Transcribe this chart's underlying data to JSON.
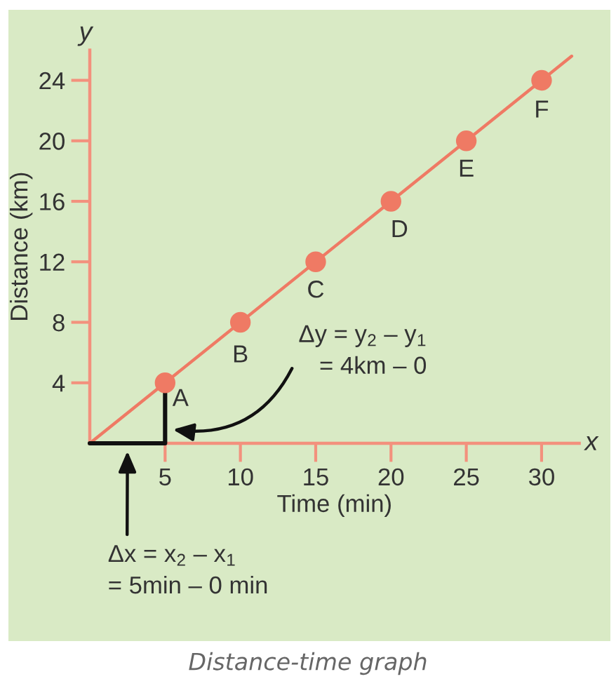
{
  "chart_data": {
    "type": "line",
    "title": "Distance-time graph",
    "xlabel": "Time (min)",
    "ylabel": "Distance (km)",
    "series": [
      {
        "color": "#ef7a64",
        "x": [
          0,
          32
        ],
        "values": [
          0,
          25.6
        ],
        "marker": "none"
      },
      {
        "type": "scatter",
        "color": "#ef7a64",
        "x": [
          5,
          10,
          15,
          20,
          25,
          30
        ],
        "values": [
          4,
          8,
          12,
          16,
          20,
          24
        ],
        "marker": "circle"
      },
      {
        "color": "#111111",
        "x": [
          0,
          5,
          5
        ],
        "values": [
          0,
          0,
          4
        ],
        "marker": "none"
      }
    ],
    "xlim": [
      0,
      32.5
    ],
    "ylim": [
      0,
      26
    ],
    "xticks": [
      5,
      10,
      15,
      20,
      25,
      30
    ],
    "yticks": [
      4,
      8,
      12,
      16,
      20,
      24
    ],
    "annotations": [
      {
        "text": "A",
        "x": 5,
        "y": 4
      },
      {
        "text": "B",
        "x": 10,
        "y": 8
      },
      {
        "text": "C",
        "x": 15,
        "y": 12
      },
      {
        "text": "D",
        "x": 20,
        "y": 16
      },
      {
        "text": "E",
        "x": 25,
        "y": 20
      },
      {
        "text": "F",
        "x": 30,
        "y": 24
      },
      "Δy = y$_{2}$ – y$_{1}$\n= 4km – 0",
      "Δx = x$_{2}$ – x$_{1}$\n= 5min – 0 min",
      "x",
      "y"
    ]
  }
}
